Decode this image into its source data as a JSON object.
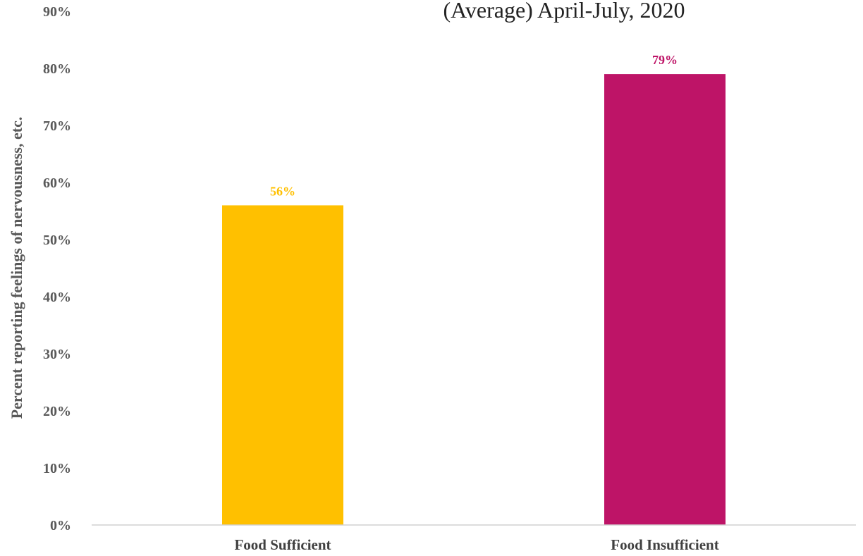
{
  "chart_data": {
    "type": "bar",
    "title": "(Average) April-July, 2020",
    "xlabel": "",
    "ylabel": "Percent reporting feelings of  nervousness, etc.",
    "categories": [
      "Food Sufficient",
      "Food Insufficient"
    ],
    "values": [
      56,
      79
    ],
    "data_labels": [
      "56%",
      "79%"
    ],
    "colors": [
      "#FFC000",
      "#BE1467"
    ],
    "ylim": [
      0,
      90
    ],
    "yticks": [
      0,
      10,
      20,
      30,
      40,
      50,
      60,
      70,
      80,
      90
    ],
    "ytick_labels": [
      "0%",
      "10%",
      "20%",
      "30%",
      "40%",
      "50%",
      "60%",
      "70%",
      "80%",
      "90%"
    ],
    "grid": false,
    "legend": "none"
  }
}
